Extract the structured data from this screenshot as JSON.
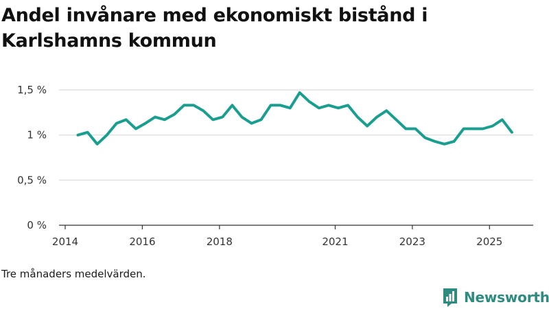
{
  "title": "Andel invånare med ekonomiskt bistånd i Karlshamns kommun",
  "caption": "Tre månaders medelvärden.",
  "brand": {
    "name": "Newsworthy",
    "logo_icon": "newsworthy-logo-icon"
  },
  "colors": {
    "line": "#1a9e8f",
    "grid": "#d9d9d9",
    "axis": "#333333",
    "brand": "#2e8b80"
  },
  "chart_data": {
    "type": "line",
    "title": "Andel invånare med ekonomiskt bistånd i Karlshamns kommun",
    "xlabel": "",
    "ylabel": "",
    "ylim": [
      0,
      1.5
    ],
    "xlim": [
      2014,
      2025.6
    ],
    "yticks": [
      {
        "value": 0,
        "label": "0 %"
      },
      {
        "value": 0.5,
        "label": "0,5 %"
      },
      {
        "value": 1,
        "label": "1 %"
      },
      {
        "value": 1.5,
        "label": "1,5 %"
      }
    ],
    "xticks": [
      {
        "value": 2014,
        "label": "2014"
      },
      {
        "value": 2016,
        "label": "2016"
      },
      {
        "value": 2018,
        "label": "2018"
      },
      {
        "value": 2021,
        "label": "2021"
      },
      {
        "value": 2023,
        "label": "2023"
      },
      {
        "value": 2025,
        "label": "2025"
      }
    ],
    "grid": true,
    "series": [
      {
        "name": "Andel invånare med ekonomiskt bistånd",
        "x": [
          2014.33,
          2014.58,
          2014.83,
          2015.08,
          2015.33,
          2015.58,
          2015.83,
          2016.08,
          2016.33,
          2016.58,
          2016.83,
          2017.08,
          2017.33,
          2017.58,
          2017.83,
          2018.08,
          2018.33,
          2018.58,
          2018.83,
          2019.08,
          2019.33,
          2019.58,
          2019.83,
          2020.08,
          2020.33,
          2020.58,
          2020.83,
          2021.08,
          2021.33,
          2021.58,
          2021.83,
          2022.08,
          2022.33,
          2022.58,
          2022.83,
          2023.08,
          2023.33,
          2023.58,
          2023.83,
          2024.08,
          2024.33,
          2024.58,
          2024.83,
          2025.08,
          2025.33,
          2025.58
        ],
        "values": [
          1.0,
          1.03,
          0.9,
          1.0,
          1.13,
          1.17,
          1.07,
          1.13,
          1.2,
          1.17,
          1.23,
          1.33,
          1.33,
          1.27,
          1.17,
          1.2,
          1.33,
          1.2,
          1.13,
          1.17,
          1.33,
          1.33,
          1.3,
          1.47,
          1.37,
          1.3,
          1.33,
          1.3,
          1.33,
          1.2,
          1.1,
          1.2,
          1.27,
          1.17,
          1.07,
          1.07,
          0.97,
          0.93,
          0.9,
          0.93,
          1.07,
          1.07,
          1.07,
          1.1,
          1.17,
          1.03
        ]
      }
    ]
  }
}
